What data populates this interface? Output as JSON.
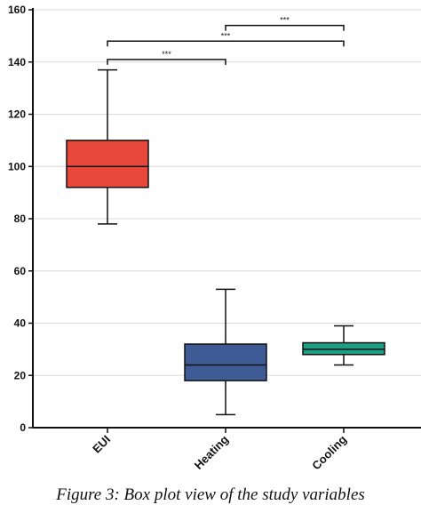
{
  "chart_data": {
    "type": "box",
    "ylim": [
      0,
      160
    ],
    "yticks": [
      0,
      20,
      40,
      60,
      80,
      100,
      120,
      140,
      160
    ],
    "grid": true,
    "categories": [
      "EUI",
      "Heating",
      "Cooling"
    ],
    "boxes": [
      {
        "category": "EUI",
        "whisker_low": 78,
        "q1": 92,
        "median": 100,
        "q3": 110,
        "whisker_high": 137,
        "color": "#e8473b"
      },
      {
        "category": "Heating",
        "whisker_low": 5,
        "q1": 18,
        "median": 24,
        "q3": 32,
        "whisker_high": 53,
        "color": "#3f5b95"
      },
      {
        "category": "Cooling",
        "whisker_low": 24,
        "q1": 28,
        "median": 30,
        "q3": 32.5,
        "whisker_high": 39,
        "color": "#1e9e84"
      }
    ],
    "significance": [
      {
        "from": "EUI",
        "to": "Heating",
        "label": "***",
        "y": 141
      },
      {
        "from": "EUI",
        "to": "Cooling",
        "label": "***",
        "y": 148
      },
      {
        "from": "Heating",
        "to": "Cooling",
        "label": "***",
        "y": 154
      }
    ]
  },
  "caption": "Figure 3: Box plot view of the study variables"
}
